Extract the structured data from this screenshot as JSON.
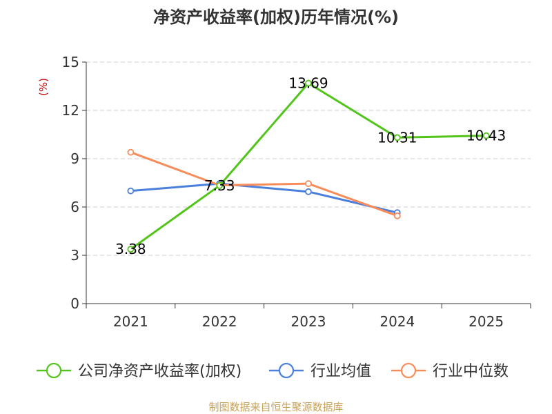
{
  "chart_data": {
    "type": "line",
    "title": "净资产收益率(加权)历年情况(%)",
    "ylabel": "(%)",
    "xlabel": "",
    "categories": [
      "2021",
      "2022",
      "2023",
      "2024",
      "2025"
    ],
    "ylim": [
      0,
      15
    ],
    "yticks": [
      0,
      3,
      6,
      9,
      12,
      15
    ],
    "grid": "horizontal-dashed",
    "legend_position": "bottom",
    "series": [
      {
        "name": "公司净资产收益率(加权)",
        "color": "#52c41a",
        "values": [
          3.38,
          7.33,
          13.69,
          10.31,
          10.43
        ],
        "labels": [
          "3.38",
          "7.33",
          "13.69",
          "10.31",
          "10.43"
        ]
      },
      {
        "name": "行业均值",
        "color": "#4a7fdc",
        "values": [
          7.0,
          7.45,
          6.95,
          5.65,
          null
        ]
      },
      {
        "name": "行业中位数",
        "color": "#f88c5a",
        "values": [
          9.4,
          7.35,
          7.45,
          5.45,
          null
        ]
      }
    ]
  },
  "source_text": "制图数据来自恒生聚源数据库",
  "colors": {
    "title": "#333333",
    "axis": "#333333",
    "ylabel": "#cc0000",
    "grid": "#cccccc",
    "source": "#c8a25a"
  }
}
